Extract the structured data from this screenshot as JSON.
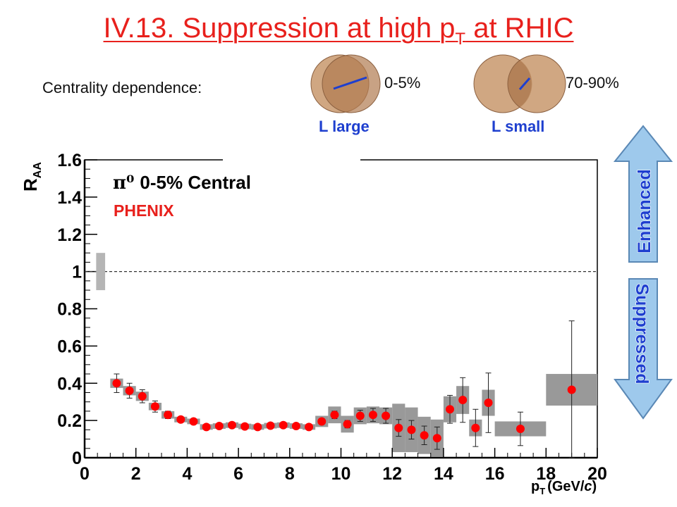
{
  "slide": {
    "title_main": "IV.13. Suppression at high p",
    "title_sub": "T",
    "title_end": " at RHIC",
    "centrality_label": "Centrality dependence:",
    "central_pct": "0-5%",
    "peripheral_pct": "70-90%",
    "l_large": "L large",
    "l_small": "L small",
    "enhanced": "Enhanced",
    "suppressed": "Suppressed"
  },
  "colors": {
    "title": "#e8201c",
    "points": "#ff0000",
    "error_box": "#999999",
    "nucleus": "#b07a50",
    "path_line": "#1e3fcf",
    "arrow_fill": "#9ec9ec",
    "arrow_text": "#1e3fcf"
  },
  "chart_data": {
    "type": "scatter",
    "title": "",
    "annotation_main": "0-5% Central",
    "annotation_particle": "π⁰",
    "annotation_experiment": "PHENIX",
    "ylabel_main": "R",
    "ylabel_sub": "AA",
    "xlabel_main": "p",
    "xlabel_sub": "T",
    "xlabel_unit_pre": "(GeV/",
    "xlabel_unit_c": "c",
    "xlabel_unit_post": ")",
    "xlim": [
      0,
      20
    ],
    "ylim": [
      0,
      1.6
    ],
    "xticks": [
      0,
      2,
      4,
      6,
      8,
      10,
      12,
      14,
      16,
      18,
      20
    ],
    "yticks": [
      0,
      0.2,
      0.4,
      0.6,
      0.8,
      1,
      1.2,
      1.4,
      1.6
    ],
    "reference_line": 1,
    "normalization_box": {
      "x": [
        0.45,
        0.8
      ],
      "y": [
        0.9,
        1.1
      ]
    },
    "grid": false,
    "series": [
      {
        "name": "PHENIX",
        "points": [
          {
            "x": 1.25,
            "y": 0.4,
            "stat": 0.05,
            "sys": 0.025,
            "hw": 0.25
          },
          {
            "x": 1.75,
            "y": 0.36,
            "stat": 0.04,
            "sys": 0.025,
            "hw": 0.25
          },
          {
            "x": 2.25,
            "y": 0.33,
            "stat": 0.035,
            "sys": 0.025,
            "hw": 0.25
          },
          {
            "x": 2.75,
            "y": 0.275,
            "stat": 0.03,
            "sys": 0.02,
            "hw": 0.25
          },
          {
            "x": 3.25,
            "y": 0.23,
            "stat": 0.02,
            "sys": 0.02,
            "hw": 0.25
          },
          {
            "x": 3.75,
            "y": 0.205,
            "stat": 0.015,
            "sys": 0.015,
            "hw": 0.25
          },
          {
            "x": 4.25,
            "y": 0.195,
            "stat": 0.01,
            "sys": 0.015,
            "hw": 0.25
          },
          {
            "x": 4.75,
            "y": 0.165,
            "stat": 0.01,
            "sys": 0.015,
            "hw": 0.25
          },
          {
            "x": 5.25,
            "y": 0.17,
            "stat": 0.01,
            "sys": 0.015,
            "hw": 0.25
          },
          {
            "x": 5.75,
            "y": 0.175,
            "stat": 0.01,
            "sys": 0.015,
            "hw": 0.25
          },
          {
            "x": 6.25,
            "y": 0.168,
            "stat": 0.01,
            "sys": 0.015,
            "hw": 0.25
          },
          {
            "x": 6.75,
            "y": 0.165,
            "stat": 0.01,
            "sys": 0.015,
            "hw": 0.25
          },
          {
            "x": 7.25,
            "y": 0.172,
            "stat": 0.01,
            "sys": 0.015,
            "hw": 0.25
          },
          {
            "x": 7.75,
            "y": 0.175,
            "stat": 0.01,
            "sys": 0.015,
            "hw": 0.25
          },
          {
            "x": 8.25,
            "y": 0.17,
            "stat": 0.01,
            "sys": 0.015,
            "hw": 0.25
          },
          {
            "x": 8.75,
            "y": 0.165,
            "stat": 0.01,
            "sys": 0.015,
            "hw": 0.25
          },
          {
            "x": 9.25,
            "y": 0.195,
            "stat": 0.015,
            "sys": 0.03,
            "hw": 0.25
          },
          {
            "x": 9.75,
            "y": 0.23,
            "stat": 0.02,
            "sys": 0.045,
            "hw": 0.25
          },
          {
            "x": 10.25,
            "y": 0.18,
            "stat": 0.02,
            "sys": 0.045,
            "hw": 0.25
          },
          {
            "x": 10.75,
            "y": 0.225,
            "stat": 0.03,
            "sys": 0.045,
            "hw": 0.25
          },
          {
            "x": 11.25,
            "y": 0.23,
            "stat": 0.035,
            "sys": 0.045,
            "hw": 0.25
          },
          {
            "x": 11.75,
            "y": 0.225,
            "stat": 0.04,
            "sys": 0.045,
            "hw": 0.25
          },
          {
            "x": 12.25,
            "y": 0.16,
            "stat": 0.045,
            "sys": 0.13,
            "hw": 0.25
          },
          {
            "x": 12.75,
            "y": 0.15,
            "stat": 0.05,
            "sys": 0.12,
            "hw": 0.25
          },
          {
            "x": 13.25,
            "y": 0.12,
            "stat": 0.05,
            "sys": 0.1,
            "hw": 0.25
          },
          {
            "x": 13.75,
            "y": 0.105,
            "stat": 0.06,
            "sys": 0.1,
            "hw": 0.25
          },
          {
            "x": 14.25,
            "y": 0.26,
            "stat": 0.075,
            "sys": 0.07,
            "hw": 0.25
          },
          {
            "x": 14.75,
            "y": 0.31,
            "stat": 0.12,
            "sys": 0.075,
            "hw": 0.25
          },
          {
            "x": 15.25,
            "y": 0.16,
            "stat": 0.1,
            "sys": 0.045,
            "hw": 0.25
          },
          {
            "x": 15.75,
            "y": 0.295,
            "stat": 0.16,
            "sys": 0.07,
            "hw": 0.25
          },
          {
            "x": 17.0,
            "y": 0.155,
            "stat": 0.09,
            "sys": 0.04,
            "hw": 1.0
          },
          {
            "x": 19.0,
            "y": 0.365,
            "stat": 0.37,
            "sys": 0.085,
            "hw": 1.0
          }
        ]
      }
    ]
  }
}
